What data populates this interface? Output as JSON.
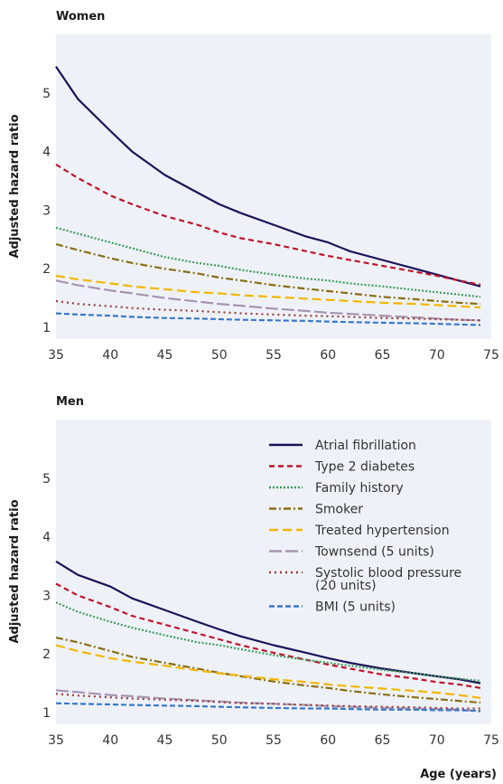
{
  "chart_data": [
    {
      "type": "line",
      "title": "Women",
      "xlabel": "",
      "ylabel": "Adjusted hazard ratio",
      "xlim": [
        35,
        75
      ],
      "ylim": [
        0.8,
        6.0
      ],
      "xticks": [
        35,
        40,
        45,
        50,
        55,
        60,
        65,
        70,
        75
      ],
      "yticks": [
        1,
        2,
        3,
        4,
        5
      ],
      "background": "#eef2f8",
      "grid": false,
      "legend": false,
      "series": [
        {
          "name": "Atrial fibrillation",
          "color": "#1c1259",
          "dash": "",
          "x": [
            35,
            37,
            40,
            42,
            45,
            48,
            50,
            52,
            55,
            58,
            60,
            62,
            65,
            68,
            70,
            72,
            74
          ],
          "y": [
            5.45,
            4.9,
            4.35,
            4.0,
            3.6,
            3.3,
            3.1,
            2.95,
            2.75,
            2.55,
            2.45,
            2.3,
            2.15,
            2.0,
            1.9,
            1.8,
            1.7
          ]
        },
        {
          "name": "Type 2 diabetes",
          "color": "#c0142b",
          "dash": "6,4",
          "x": [
            35,
            37,
            40,
            42,
            45,
            48,
            50,
            52,
            55,
            58,
            60,
            62,
            65,
            68,
            70,
            72,
            74
          ],
          "y": [
            3.78,
            3.55,
            3.25,
            3.1,
            2.9,
            2.75,
            2.62,
            2.52,
            2.42,
            2.3,
            2.22,
            2.15,
            2.05,
            1.95,
            1.88,
            1.8,
            1.73
          ]
        },
        {
          "name": "Family history",
          "color": "#3f9b5b",
          "dash": "2,2",
          "x": [
            35,
            37,
            40,
            42,
            45,
            48,
            50,
            52,
            55,
            58,
            60,
            62,
            65,
            68,
            70,
            72,
            74
          ],
          "y": [
            2.7,
            2.6,
            2.45,
            2.35,
            2.2,
            2.1,
            2.05,
            1.98,
            1.9,
            1.83,
            1.8,
            1.75,
            1.7,
            1.64,
            1.6,
            1.56,
            1.52
          ]
        },
        {
          "name": "Smoker",
          "color": "#8a6d14",
          "dash": "8,3,2,3",
          "x": [
            35,
            37,
            40,
            42,
            45,
            48,
            50,
            52,
            55,
            58,
            60,
            62,
            65,
            68,
            70,
            72,
            74
          ],
          "y": [
            2.42,
            2.32,
            2.18,
            2.1,
            2.0,
            1.92,
            1.85,
            1.8,
            1.72,
            1.66,
            1.62,
            1.58,
            1.52,
            1.48,
            1.45,
            1.42,
            1.4
          ]
        },
        {
          "name": "Treated hypertension",
          "color": "#f2b600",
          "dash": "10,5",
          "x": [
            35,
            37,
            40,
            42,
            45,
            48,
            50,
            52,
            55,
            58,
            60,
            62,
            65,
            68,
            70,
            72,
            74
          ],
          "y": [
            1.88,
            1.82,
            1.75,
            1.7,
            1.65,
            1.6,
            1.58,
            1.55,
            1.52,
            1.49,
            1.47,
            1.45,
            1.42,
            1.4,
            1.38,
            1.36,
            1.34
          ]
        },
        {
          "name": "Townsend (5 units)",
          "color": "#a694b0",
          "dash": "14,4",
          "x": [
            35,
            37,
            40,
            42,
            45,
            48,
            50,
            52,
            55,
            58,
            60,
            62,
            65,
            68,
            70,
            72,
            74
          ],
          "y": [
            1.8,
            1.72,
            1.63,
            1.58,
            1.5,
            1.44,
            1.4,
            1.37,
            1.32,
            1.28,
            1.25,
            1.23,
            1.2,
            1.17,
            1.15,
            1.13,
            1.12
          ]
        },
        {
          "name": "Systolic blood pressure (20 units)",
          "color": "#9a3b3b",
          "dash": "2,4",
          "x": [
            35,
            37,
            40,
            42,
            45,
            48,
            50,
            52,
            55,
            58,
            60,
            62,
            65,
            68,
            70,
            72,
            74
          ],
          "y": [
            1.45,
            1.4,
            1.36,
            1.33,
            1.3,
            1.28,
            1.26,
            1.24,
            1.22,
            1.2,
            1.19,
            1.18,
            1.16,
            1.15,
            1.14,
            1.13,
            1.12
          ]
        },
        {
          "name": "BMI (5 units)",
          "color": "#3a78c9",
          "dash": "6,3",
          "x": [
            35,
            37,
            40,
            42,
            45,
            48,
            50,
            52,
            55,
            58,
            60,
            62,
            65,
            68,
            70,
            72,
            74
          ],
          "y": [
            1.24,
            1.22,
            1.2,
            1.18,
            1.16,
            1.15,
            1.14,
            1.13,
            1.12,
            1.11,
            1.1,
            1.09,
            1.08,
            1.07,
            1.06,
            1.05,
            1.04
          ]
        }
      ]
    },
    {
      "type": "line",
      "title": "Men",
      "xlabel": "Age (years)",
      "ylabel": "Adjusted hazard ratio",
      "xlim": [
        35,
        75
      ],
      "ylim": [
        0.8,
        6.0
      ],
      "xticks": [
        35,
        40,
        45,
        50,
        55,
        60,
        65,
        70,
        75
      ],
      "yticks": [
        1,
        2,
        3,
        4,
        5
      ],
      "background": "#eef2f8",
      "grid": false,
      "legend": "top-right",
      "series": [
        {
          "name": "Atrial fibrillation",
          "color": "#1c1259",
          "dash": "",
          "x": [
            35,
            37,
            40,
            42,
            45,
            48,
            50,
            52,
            55,
            58,
            60,
            62,
            65,
            68,
            70,
            72,
            74
          ],
          "y": [
            3.58,
            3.35,
            3.15,
            2.95,
            2.75,
            2.55,
            2.42,
            2.3,
            2.15,
            2.02,
            1.93,
            1.85,
            1.75,
            1.67,
            1.62,
            1.57,
            1.5
          ]
        },
        {
          "name": "Type 2 diabetes",
          "color": "#c0142b",
          "dash": "6,4",
          "x": [
            35,
            37,
            40,
            42,
            45,
            48,
            50,
            52,
            55,
            58,
            60,
            62,
            65,
            68,
            70,
            72,
            74
          ],
          "y": [
            3.2,
            3.0,
            2.8,
            2.65,
            2.5,
            2.35,
            2.25,
            2.15,
            2.02,
            1.9,
            1.82,
            1.75,
            1.65,
            1.58,
            1.52,
            1.48,
            1.42
          ]
        },
        {
          "name": "Family history",
          "color": "#3f9b5b",
          "dash": "2,2",
          "x": [
            35,
            37,
            40,
            42,
            45,
            48,
            50,
            52,
            55,
            58,
            60,
            62,
            65,
            68,
            70,
            72,
            74
          ],
          "y": [
            2.88,
            2.72,
            2.55,
            2.45,
            2.32,
            2.2,
            2.15,
            2.08,
            1.98,
            1.9,
            1.85,
            1.8,
            1.73,
            1.67,
            1.62,
            1.58,
            1.54
          ]
        },
        {
          "name": "Smoker",
          "color": "#8a6d14",
          "dash": "8,3,2,3",
          "x": [
            35,
            37,
            40,
            42,
            45,
            48,
            50,
            52,
            55,
            58,
            60,
            62,
            65,
            68,
            70,
            72,
            74
          ],
          "y": [
            2.28,
            2.2,
            2.05,
            1.95,
            1.85,
            1.75,
            1.68,
            1.62,
            1.53,
            1.46,
            1.42,
            1.37,
            1.31,
            1.26,
            1.23,
            1.2,
            1.17
          ]
        },
        {
          "name": "Treated hypertension",
          "color": "#f2b600",
          "dash": "10,5",
          "x": [
            35,
            37,
            40,
            42,
            45,
            48,
            50,
            52,
            55,
            58,
            60,
            62,
            65,
            68,
            70,
            72,
            74
          ],
          "y": [
            2.15,
            2.05,
            1.93,
            1.87,
            1.8,
            1.72,
            1.67,
            1.63,
            1.57,
            1.52,
            1.48,
            1.45,
            1.41,
            1.37,
            1.34,
            1.3,
            1.25
          ]
        },
        {
          "name": "Townsend (5 units)",
          "color": "#a694b0",
          "dash": "14,4",
          "x": [
            35,
            37,
            40,
            42,
            45,
            48,
            50,
            52,
            55,
            58,
            60,
            62,
            65,
            68,
            70,
            72,
            74
          ],
          "y": [
            1.38,
            1.35,
            1.3,
            1.28,
            1.24,
            1.21,
            1.19,
            1.17,
            1.15,
            1.13,
            1.11,
            1.1,
            1.08,
            1.07,
            1.06,
            1.05,
            1.02
          ]
        },
        {
          "name": "Systolic blood pressure (20 units)",
          "color": "#9a3b3b",
          "dash": "2,4",
          "x": [
            35,
            37,
            40,
            42,
            45,
            48,
            50,
            52,
            55,
            58,
            60,
            62,
            65,
            68,
            70,
            72,
            74
          ],
          "y": [
            1.32,
            1.29,
            1.26,
            1.24,
            1.22,
            1.2,
            1.18,
            1.16,
            1.15,
            1.13,
            1.12,
            1.11,
            1.1,
            1.09,
            1.08,
            1.07,
            1.07
          ]
        },
        {
          "name": "BMI (5 units)",
          "color": "#3a78c9",
          "dash": "6,3",
          "x": [
            35,
            37,
            40,
            42,
            45,
            48,
            50,
            52,
            55,
            58,
            60,
            62,
            65,
            68,
            70,
            72,
            74
          ],
          "y": [
            1.16,
            1.15,
            1.14,
            1.13,
            1.12,
            1.11,
            1.1,
            1.09,
            1.08,
            1.07,
            1.07,
            1.06,
            1.05,
            1.05,
            1.04,
            1.04,
            1.03
          ]
        }
      ]
    }
  ]
}
